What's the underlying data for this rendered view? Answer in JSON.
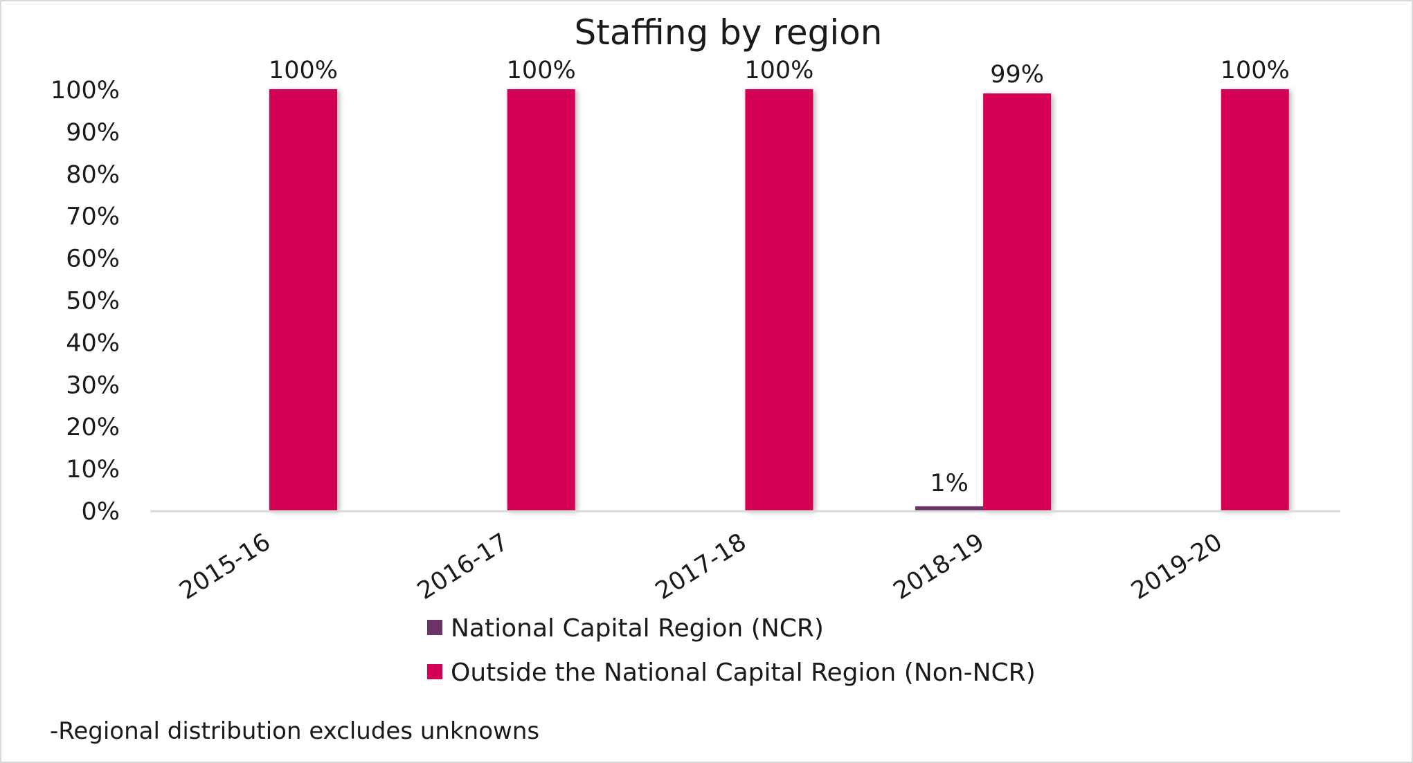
{
  "chart_data": {
    "type": "bar",
    "title": "Staffing by region",
    "xlabel": "",
    "ylabel": "",
    "ylim": [
      0,
      100
    ],
    "yticks": [
      "0%",
      "10%",
      "20%",
      "30%",
      "40%",
      "50%",
      "60%",
      "70%",
      "80%",
      "90%",
      "100%"
    ],
    "categories": [
      "2015-16",
      "2016-17",
      "2017-18",
      "2018-19",
      "2019-20"
    ],
    "series": [
      {
        "name": "National Capital Region (NCR)",
        "color": "#6b3466",
        "values": [
          0,
          0,
          0,
          1,
          0
        ],
        "labels": [
          "",
          "",
          "",
          "1%",
          ""
        ]
      },
      {
        "name": "Outside the National Capital Region (Non-NCR)",
        "color": "#d40055",
        "values": [
          100,
          100,
          100,
          99,
          100
        ],
        "labels": [
          "100%",
          "100%",
          "100%",
          "99%",
          "100%"
        ]
      }
    ],
    "legend_position": "bottom",
    "grid": false,
    "footnote": "-Regional distribution excludes unknowns"
  }
}
